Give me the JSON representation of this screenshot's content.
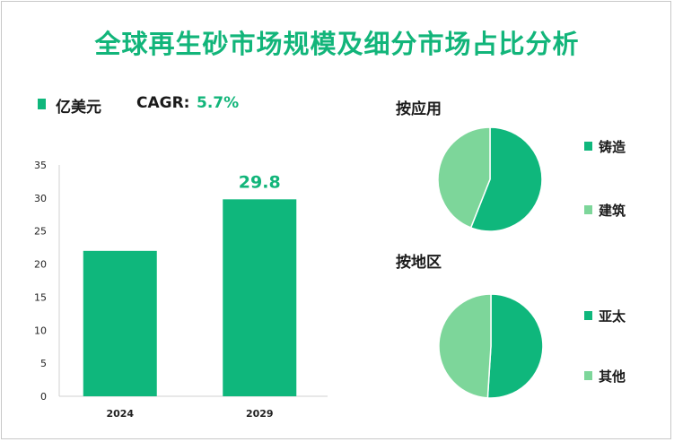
{
  "title": "全球再生砂市场规模及细分市场占比分析",
  "legend": {
    "unit": "亿美元",
    "cagr_label": "CAGR: ",
    "cagr_value": "5.7%"
  },
  "colors": {
    "title": "#12b57a",
    "bar": "#0fb77c",
    "dark_green": "#0fb77c",
    "light_green": "#7dd69a",
    "axis": "#d0d0d0"
  },
  "chart_data": [
    {
      "type": "bar",
      "title": "",
      "categories": [
        "2024",
        "2029"
      ],
      "values": [
        22.0,
        29.8
      ],
      "data_labels": [
        "",
        "29.8"
      ],
      "ylim": [
        0,
        35
      ],
      "yticks": [
        "0",
        "5",
        "10",
        "15",
        "20",
        "25",
        "30",
        "35"
      ],
      "xlabel": "",
      "ylabel": "亿美元"
    },
    {
      "type": "pie",
      "title": "按应用",
      "labels": [
        "铸造",
        "建筑"
      ],
      "values": [
        56,
        44
      ],
      "colors": [
        "#0fb77c",
        "#7dd69a"
      ]
    },
    {
      "type": "pie",
      "title": "按地区",
      "labels": [
        "亚太",
        "其他"
      ],
      "values": [
        51,
        49
      ],
      "colors": [
        "#0fb77c",
        "#7dd69a"
      ]
    }
  ]
}
